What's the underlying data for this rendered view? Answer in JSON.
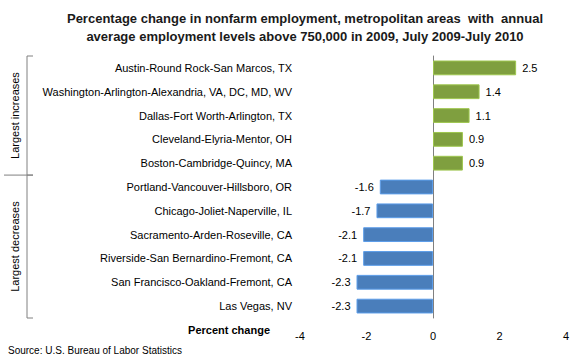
{
  "chart_data": {
    "type": "bar",
    "orientation": "horizontal",
    "title": "Percentage change in nonfarm employment, metropolitan areas  with  annual\naverage employment levels above 750,000 in 2009, July 2009-July 2010",
    "xlabel": "Percent change",
    "annotations": [
      "Largest increases",
      "Largest decreases"
    ],
    "source": "Source: U.S. Bureau of Labor Statistics",
    "categories": [
      "Austin-Round Rock-San Marcos, TX",
      "Washington-Arlington-Alexandria, VA, DC, MD, WV",
      "Dallas-Fort Worth-Arlington, TX",
      "Cleveland-Elyria-Mentor, OH",
      "Boston-Cambridge-Quincy, MA",
      "Portland-Vancouver-Hillsboro, OR",
      "Chicago-Joliet-Naperville, IL",
      "Sacramento-Arden-Roseville, CA",
      "Riverside-San Bernardino-Fremont, CA",
      "San Francisco-Oakland-Fremont, CA",
      "Las Vegas, NV"
    ],
    "values": [
      2.5,
      1.4,
      1.1,
      0.9,
      0.9,
      -1.6,
      -1.7,
      -2.1,
      -2.1,
      -2.3,
      -2.3
    ],
    "colors": [
      "#7f9f3f",
      "#7f9f3f",
      "#7f9f3f",
      "#7f9f3f",
      "#7f9f3f",
      "#4a7ebb",
      "#4a7ebb",
      "#4a7ebb",
      "#4a7ebb",
      "#4a7ebb",
      "#4a7ebb"
    ],
    "xlim": [
      -4,
      4
    ],
    "xticks": [
      -4,
      -2,
      0,
      2,
      4
    ],
    "grid": false,
    "data_labels": true
  }
}
